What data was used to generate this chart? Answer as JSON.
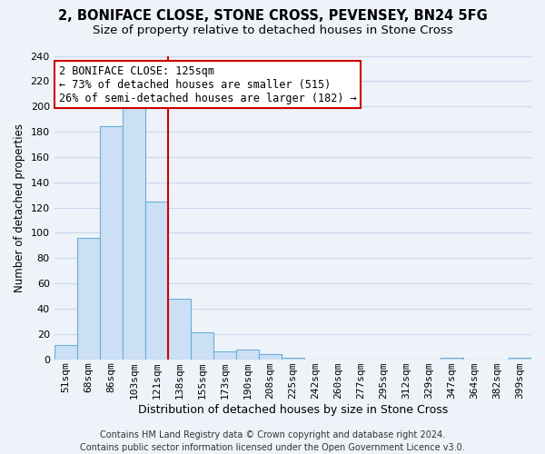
{
  "title": "2, BONIFACE CLOSE, STONE CROSS, PEVENSEY, BN24 5FG",
  "subtitle": "Size of property relative to detached houses in Stone Cross",
  "xlabel": "Distribution of detached houses by size in Stone Cross",
  "ylabel": "Number of detached properties",
  "bin_labels": [
    "51sqm",
    "68sqm",
    "86sqm",
    "103sqm",
    "121sqm",
    "138sqm",
    "155sqm",
    "173sqm",
    "190sqm",
    "208sqm",
    "225sqm",
    "242sqm",
    "260sqm",
    "277sqm",
    "295sqm",
    "312sqm",
    "329sqm",
    "347sqm",
    "364sqm",
    "382sqm",
    "399sqm"
  ],
  "bar_heights": [
    11,
    96,
    184,
    201,
    125,
    48,
    21,
    6,
    8,
    4,
    1,
    0,
    0,
    0,
    0,
    0,
    0,
    1,
    0,
    0,
    1
  ],
  "bar_facecolor": "#cce0f5",
  "bar_edgecolor": "#6aaed6",
  "vline_index": 4,
  "vline_color": "#cc0000",
  "annotation_line1": "2 BONIFACE CLOSE: 125sqm",
  "annotation_line2": "← 73% of detached houses are smaller (515)",
  "annotation_line3": "26% of semi-detached houses are larger (182) →",
  "annotation_box_facecolor": "#ffffff",
  "annotation_box_edgecolor": "#cc0000",
  "ylim": [
    0,
    240
  ],
  "yticks": [
    0,
    20,
    40,
    60,
    80,
    100,
    120,
    140,
    160,
    180,
    200,
    220,
    240
  ],
  "footer_line1": "Contains HM Land Registry data © Crown copyright and database right 2024.",
  "footer_line2": "Contains public sector information licensed under the Open Government Licence v3.0.",
  "background_color": "#eef2f9",
  "grid_color": "#c8d8ed",
  "title_fontsize": 10.5,
  "subtitle_fontsize": 9.5,
  "xlabel_fontsize": 9,
  "ylabel_fontsize": 8.5,
  "tick_fontsize": 8,
  "annotation_fontsize": 8.5,
  "footer_fontsize": 7
}
